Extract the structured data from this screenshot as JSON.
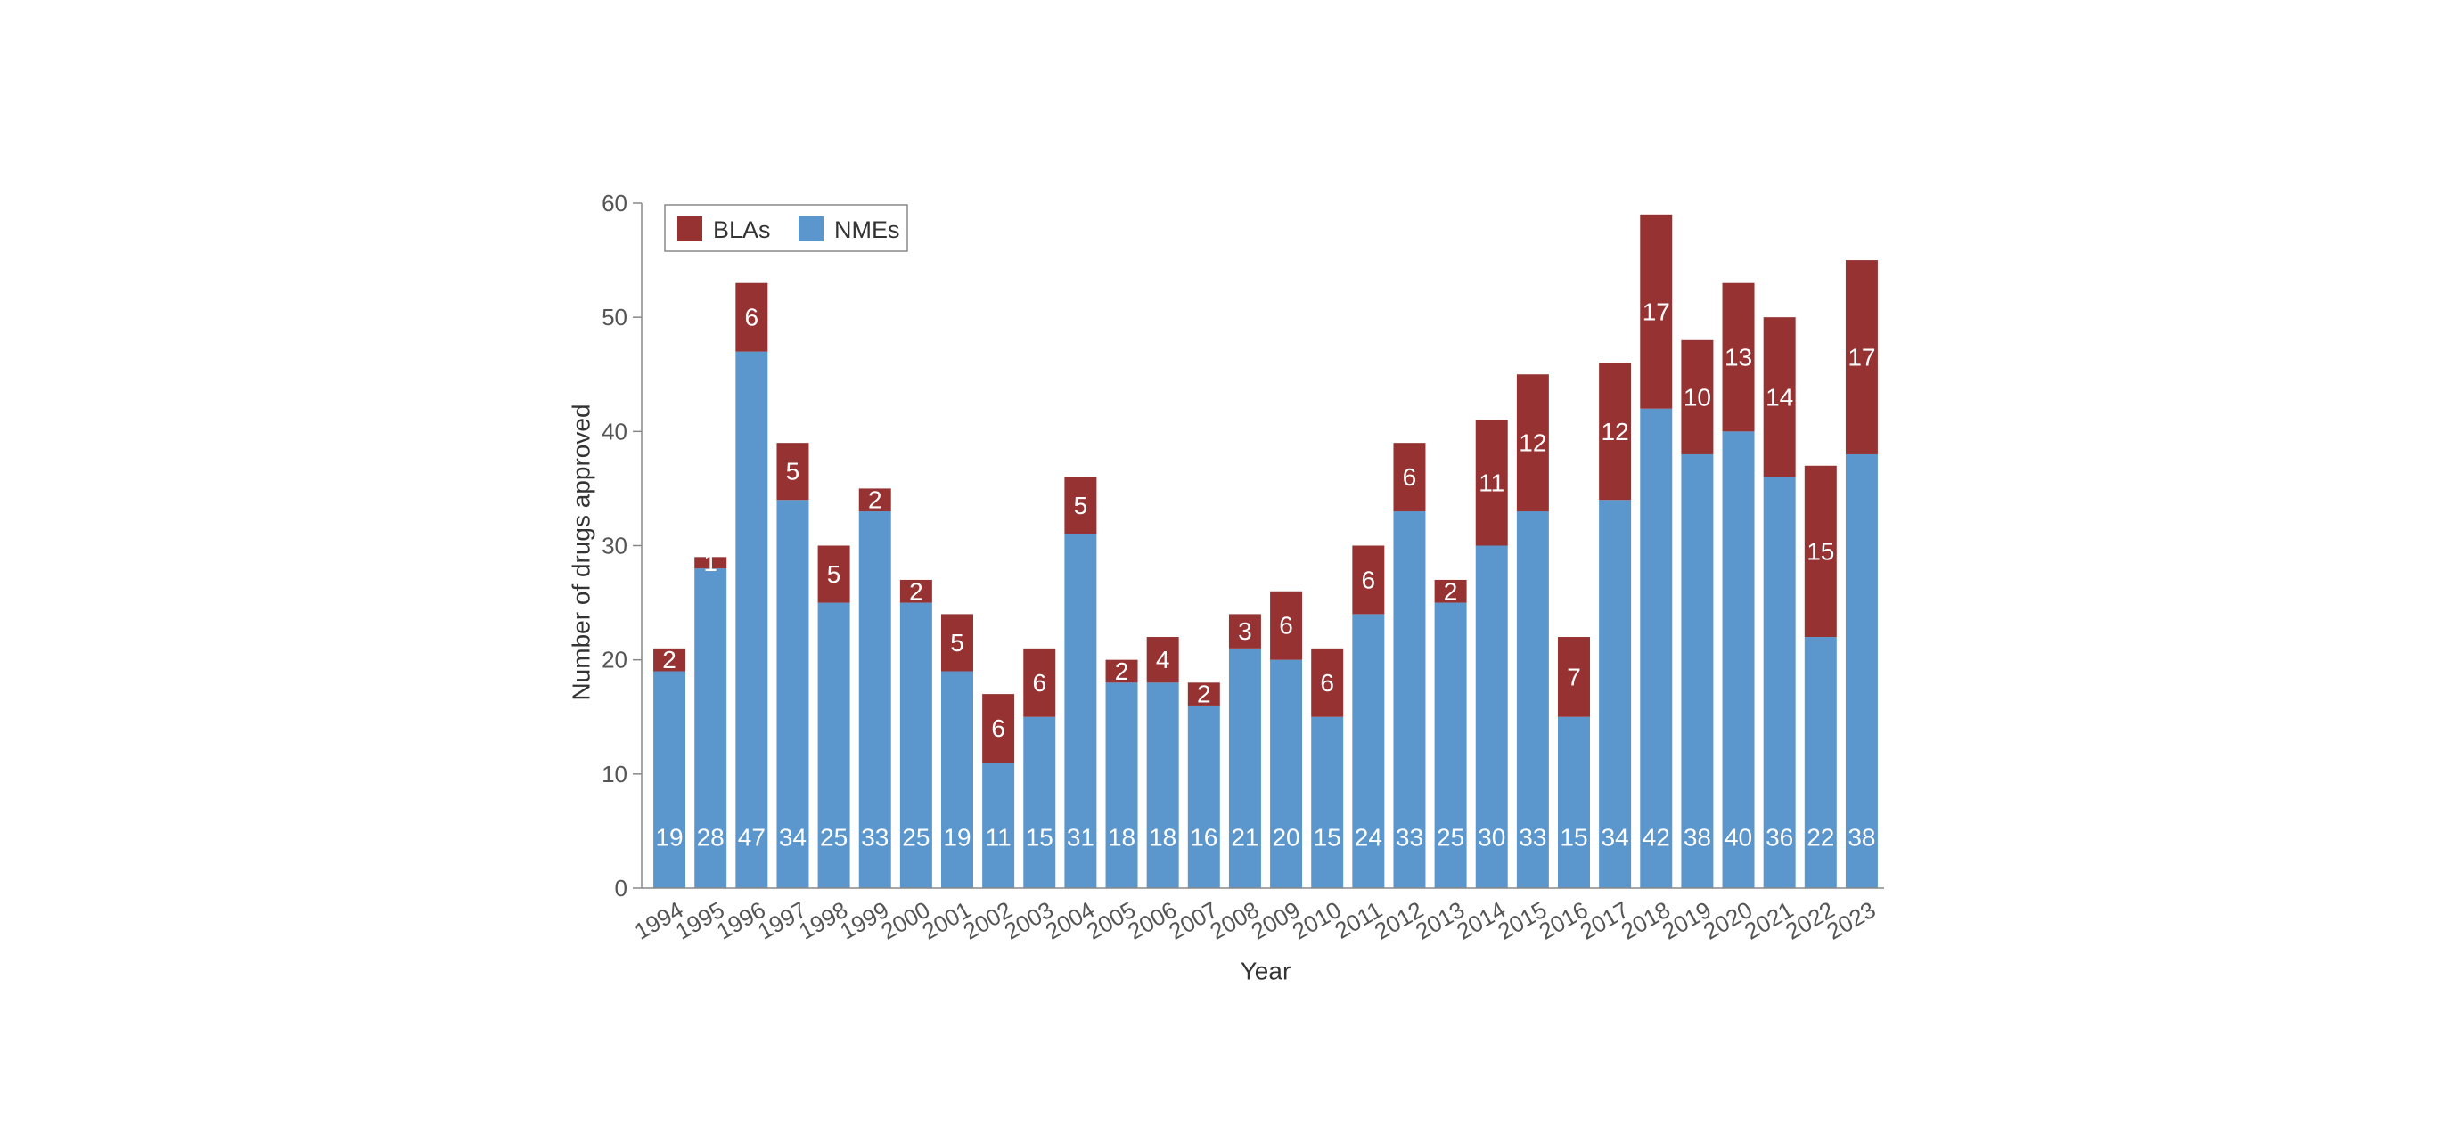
{
  "chart_data": {
    "type": "bar",
    "stacked": true,
    "categories": [
      "1994",
      "1995",
      "1996",
      "1997",
      "1998",
      "1999",
      "2000",
      "2001",
      "2002",
      "2003",
      "2004",
      "2005",
      "2006",
      "2007",
      "2008",
      "2009",
      "2010",
      "2011",
      "2012",
      "2013",
      "2014",
      "2015",
      "2016",
      "2017",
      "2018",
      "2019",
      "2020",
      "2021",
      "2022",
      "2023"
    ],
    "series": [
      {
        "name": "NMEs",
        "color": "#5b96cc",
        "values": [
          19,
          28,
          47,
          34,
          25,
          33,
          25,
          19,
          11,
          15,
          31,
          18,
          18,
          16,
          21,
          20,
          15,
          24,
          33,
          25,
          30,
          33,
          15,
          34,
          42,
          38,
          40,
          36,
          22,
          38
        ]
      },
      {
        "name": "BLAs",
        "color": "#963232",
        "values": [
          2,
          1,
          6,
          5,
          5,
          2,
          2,
          5,
          6,
          6,
          5,
          2,
          4,
          2,
          3,
          6,
          6,
          6,
          6,
          2,
          11,
          12,
          7,
          12,
          17,
          10,
          13,
          14,
          15,
          17
        ]
      }
    ],
    "legend_order": [
      "BLAs",
      "NMEs"
    ],
    "legend_position": "top-left",
    "xlabel": "Year",
    "ylabel": "Number of drugs approved",
    "ylim": [
      0,
      60
    ],
    "yticks": [
      0,
      10,
      20,
      30,
      40,
      50,
      60
    ],
    "grid": false
  }
}
